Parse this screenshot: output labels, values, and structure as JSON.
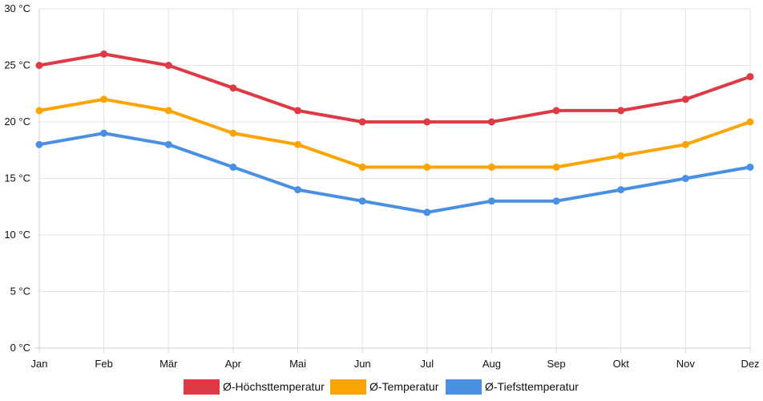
{
  "chart_data": {
    "type": "line",
    "categories": [
      "Jan",
      "Feb",
      "Mär",
      "Apr",
      "Mai",
      "Jun",
      "Jul",
      "Aug",
      "Sep",
      "Okt",
      "Nov",
      "Dez"
    ],
    "y_ticks": [
      "0 °C",
      "5 °C",
      "10 °C",
      "15 °C",
      "20 °C",
      "25 °C",
      "30 °C"
    ],
    "ylim": [
      0,
      30
    ],
    "grid": true,
    "legend_position": "bottom",
    "series": [
      {
        "name": "Ø-Höchsttemperatur",
        "color": "#dd3a45",
        "values": [
          25,
          26,
          25,
          23,
          21,
          20,
          20,
          20,
          21,
          21,
          22,
          24
        ]
      },
      {
        "name": "Ø-Temperatur",
        "color": "#fca404",
        "values": [
          21,
          22,
          21,
          19,
          18,
          16,
          16,
          16,
          16,
          17,
          18,
          20
        ]
      },
      {
        "name": "Ø-Tiefsttemperatur",
        "color": "#4a90e2",
        "values": [
          18,
          19,
          18,
          16,
          14,
          13,
          12,
          13,
          13,
          14,
          15,
          16
        ]
      }
    ]
  }
}
